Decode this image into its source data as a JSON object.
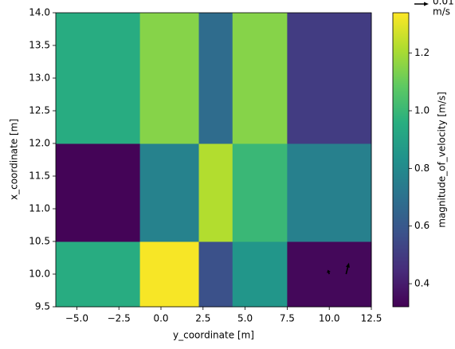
{
  "chart_data": {
    "type": "heatmap",
    "x_label": "y_coordinate [m]",
    "y_label": "x_coordinate [m]",
    "x_edges": [
      -6.25,
      -1.25,
      2.25,
      4.25,
      7.5,
      12.5
    ],
    "y_edges": [
      9.5,
      10.5,
      12,
      14
    ],
    "values": [
      [
        0.95,
        1.33,
        0.57,
        0.85,
        0.34
      ],
      [
        0.33,
        0.77,
        1.22,
        1.0,
        0.76
      ],
      [
        0.95,
        1.15,
        0.68,
        1.15,
        0.5
      ]
    ],
    "colormap": "viridis",
    "xlim": [
      -6.25,
      12.5
    ],
    "xticks": [
      {
        "value": -5,
        "label": "−5.0"
      },
      {
        "value": -2.5,
        "label": "−2.5"
      },
      {
        "value": 0,
        "label": "0.0"
      },
      2.5,
      {
        "value": 5,
        "label": "5.0"
      },
      7.5,
      {
        "value": 10,
        "label": "10.0"
      },
      12.5
    ],
    "ylim": [
      9.5,
      14
    ],
    "yticks": [
      9.5,
      {
        "value": 10,
        "label": "10.0"
      },
      10.5,
      {
        "value": 11,
        "label": "11.0"
      },
      11.5,
      {
        "value": 12,
        "label": "12.0"
      },
      12.5,
      {
        "value": 13,
        "label": "13.0"
      },
      13.5,
      {
        "value": 14,
        "label": "14.0"
      }
    ],
    "colorbar": {
      "label": "magnitude_of_velocity [m/s]",
      "clim": [
        0.32,
        1.34
      ],
      "ticks": [
        0.4,
        0.6,
        0.8,
        {
          "value": 1,
          "label": "1.0"
        },
        1.2
      ]
    },
    "quiver": {
      "x": [
        10,
        11
      ],
      "y": [
        10,
        10
      ],
      "u": [
        -0.001,
        0.002
      ],
      "v": [
        0.003,
        0.008
      ],
      "color": "#000000"
    },
    "quiver_key": {
      "value": 0.01,
      "label_lines": [
        "0.01",
        "m/s"
      ]
    }
  }
}
